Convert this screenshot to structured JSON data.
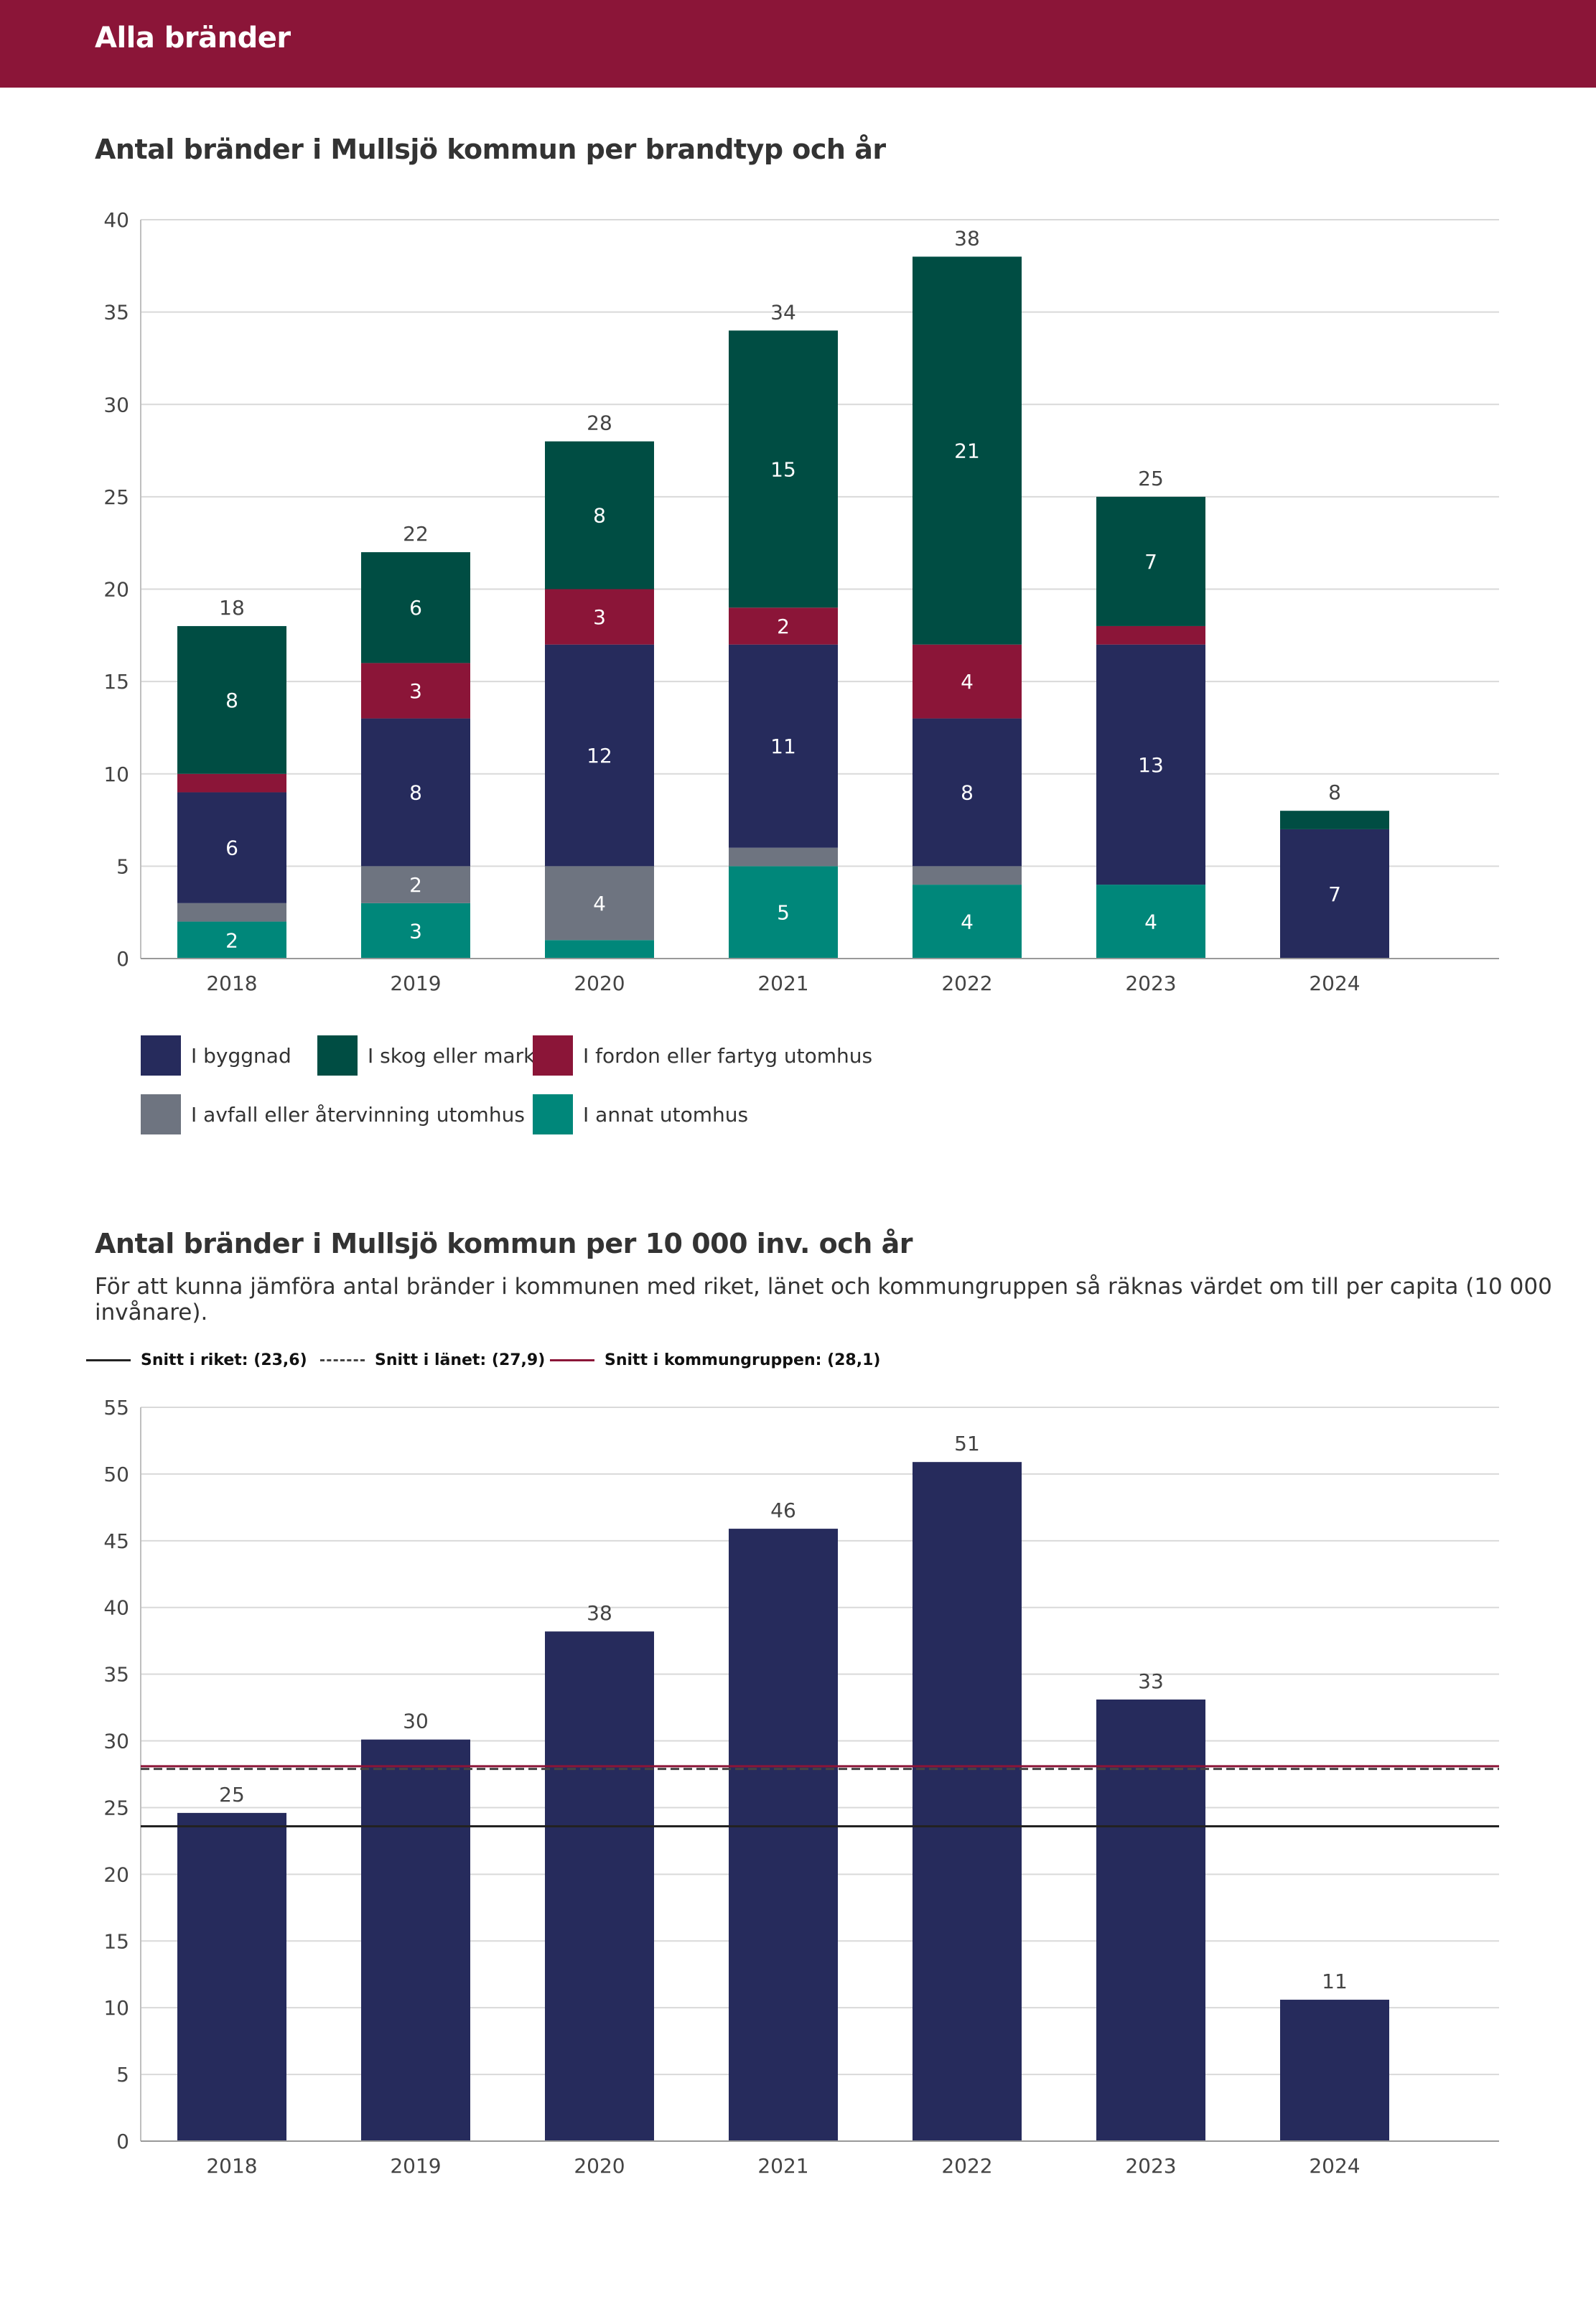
{
  "header": {
    "title": "Alla bränder"
  },
  "section1": {
    "title": "Antal bränder i Mullsjö kommun per brandtyp och år"
  },
  "section2": {
    "title": "Antal bränder i Mullsjö kommun per 10 000 inv. och år",
    "description": "För att kunna jämföra antal bränder i kommunen med riket, länet och kommungruppen så räknas värdet om till per capita (10 000 invånare)."
  },
  "chart_data": [
    {
      "type": "bar",
      "stacked": true,
      "title": "Antal bränder i Mullsjö kommun per brandtyp och år",
      "categories": [
        "2018",
        "2019",
        "2020",
        "2021",
        "2022",
        "2023",
        "2024"
      ],
      "ylim": [
        0,
        40
      ],
      "yticks": [
        0,
        5,
        10,
        15,
        20,
        25,
        30,
        35,
        40
      ],
      "series": [
        {
          "name": "I annat utomhus",
          "color": "#00877a",
          "values": [
            2,
            3,
            1,
            5,
            4,
            4,
            0
          ],
          "labels": [
            "2",
            "3",
            "",
            "5",
            "4",
            "4",
            ""
          ]
        },
        {
          "name": "I avfall eller återvinning utomhus",
          "color": "#6e7480",
          "values": [
            1,
            2,
            4,
            1,
            1,
            0,
            0
          ],
          "labels": [
            "",
            "2",
            "4",
            "",
            "",
            "",
            ""
          ]
        },
        {
          "name": "I byggnad",
          "color": "#262b5c",
          "values": [
            6,
            8,
            12,
            11,
            8,
            13,
            7
          ],
          "labels": [
            "6",
            "8",
            "12",
            "11",
            "8",
            "13",
            "7"
          ]
        },
        {
          "name": "I fordon eller fartyg utomhus",
          "color": "#8b1538",
          "values": [
            1,
            3,
            3,
            2,
            4,
            1,
            0
          ],
          "labels": [
            "",
            "3",
            "3",
            "2",
            "4",
            "",
            ""
          ]
        },
        {
          "name": "I skog eller mark",
          "color": "#004d43",
          "values": [
            8,
            6,
            8,
            15,
            21,
            7,
            1
          ],
          "labels": [
            "8",
            "6",
            "8",
            "15",
            "21",
            "7",
            ""
          ]
        }
      ],
      "totals": [
        "18",
        "22",
        "28",
        "34",
        "38",
        "25",
        "8"
      ],
      "legend": [
        {
          "name": "I byggnad",
          "color": "#262b5c"
        },
        {
          "name": "I skog eller mark",
          "color": "#004d43"
        },
        {
          "name": "I fordon eller fartyg utomhus",
          "color": "#8b1538"
        },
        {
          "name": "I avfall eller återvinning utomhus",
          "color": "#6e7480"
        },
        {
          "name": "I annat utomhus",
          "color": "#00877a"
        }
      ]
    },
    {
      "type": "bar",
      "title": "Antal bränder i Mullsjö kommun per 10 000 inv. och år",
      "categories": [
        "2018",
        "2019",
        "2020",
        "2021",
        "2022",
        "2023",
        "2024"
      ],
      "values": [
        24.6,
        30.1,
        38.2,
        45.9,
        50.9,
        33.1,
        10.6
      ],
      "value_labels": [
        "25",
        "30",
        "38",
        "46",
        "51",
        "33",
        "11"
      ],
      "color": "#262b5c",
      "ylim": [
        0,
        55
      ],
      "yticks": [
        0,
        5,
        10,
        15,
        20,
        25,
        30,
        35,
        40,
        45,
        50,
        55
      ],
      "reference_lines": [
        {
          "label": "Snitt i riket: (23,6)",
          "value": 23.6,
          "color": "#222222",
          "style": "solid"
        },
        {
          "label": "Snitt i länet: (27,9)",
          "value": 27.9,
          "color": "#444444",
          "style": "dashed"
        },
        {
          "label": "Snitt i kommungruppen: (28,1)",
          "value": 28.1,
          "color": "#8b1538",
          "style": "solid"
        }
      ]
    }
  ]
}
